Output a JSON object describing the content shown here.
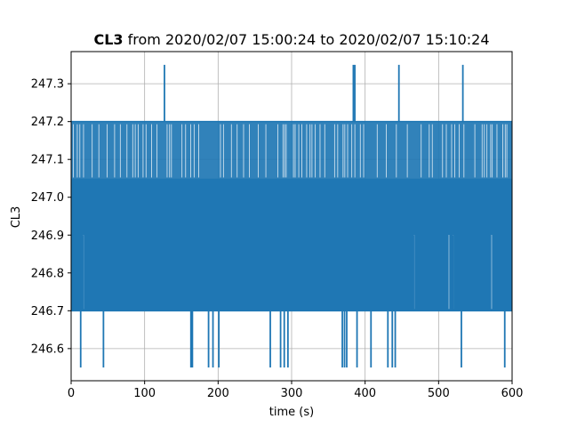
{
  "chart_data": {
    "type": "line",
    "title": {
      "signal": "CL3",
      "text": " from 2020/02/07 15:00:24 to 2020/02/07 15:10:24"
    },
    "xlabel": "time (s)",
    "ylabel": "CL3",
    "xlim": [
      0,
      600
    ],
    "ylim": [
      246.515,
      247.385
    ],
    "x_ticks": [
      0,
      100,
      200,
      300,
      400,
      500,
      600
    ],
    "y_ticks": [
      "246.6",
      "246.7",
      "246.8",
      "246.9",
      "247.0",
      "247.1",
      "247.2",
      "247.3"
    ],
    "grid": true,
    "legend": "none",
    "series_color": "#1f77b4",
    "series": [
      {
        "band": {
          "low": 246.7,
          "high": 247.05,
          "x": [
            0,
            600
          ]
        },
        "upper_band": {
          "low": 247.05,
          "high": 247.2,
          "x": [
            0,
            600
          ]
        },
        "spikes_high": [
          {
            "x": 127,
            "y": 247.35
          },
          {
            "x": 384,
            "y": 247.35
          },
          {
            "x": 386,
            "y": 247.35
          },
          {
            "x": 446,
            "y": 247.35
          },
          {
            "x": 533,
            "y": 247.35
          }
        ],
        "spikes_low": [
          {
            "x": 13,
            "y": 246.55
          },
          {
            "x": 44,
            "y": 246.55
          },
          {
            "x": 163,
            "y": 246.55
          },
          {
            "x": 165,
            "y": 246.55
          },
          {
            "x": 187,
            "y": 246.55
          },
          {
            "x": 193,
            "y": 246.55
          },
          {
            "x": 201,
            "y": 246.55
          },
          {
            "x": 271,
            "y": 246.55
          },
          {
            "x": 285,
            "y": 246.55
          },
          {
            "x": 290,
            "y": 246.55
          },
          {
            "x": 295,
            "y": 246.55
          },
          {
            "x": 369,
            "y": 246.55
          },
          {
            "x": 372,
            "y": 246.55
          },
          {
            "x": 375,
            "y": 246.55
          },
          {
            "x": 389,
            "y": 246.55
          },
          {
            "x": 408,
            "y": 246.55
          },
          {
            "x": 431,
            "y": 246.55
          },
          {
            "x": 437,
            "y": 246.55
          },
          {
            "x": 441,
            "y": 246.55
          },
          {
            "x": 531,
            "y": 246.55
          },
          {
            "x": 590,
            "y": 246.55
          }
        ],
        "low_gaps": [
          {
            "x0": 16,
            "x1": 17,
            "y": 246.9
          },
          {
            "x0": 466,
            "x1": 467,
            "y": 246.9
          },
          {
            "x0": 513,
            "x1": 515,
            "y": 246.9
          },
          {
            "x0": 519,
            "x1": 520,
            "y": 246.9
          },
          {
            "x0": 571,
            "x1": 573,
            "y": 246.9
          }
        ]
      }
    ]
  }
}
